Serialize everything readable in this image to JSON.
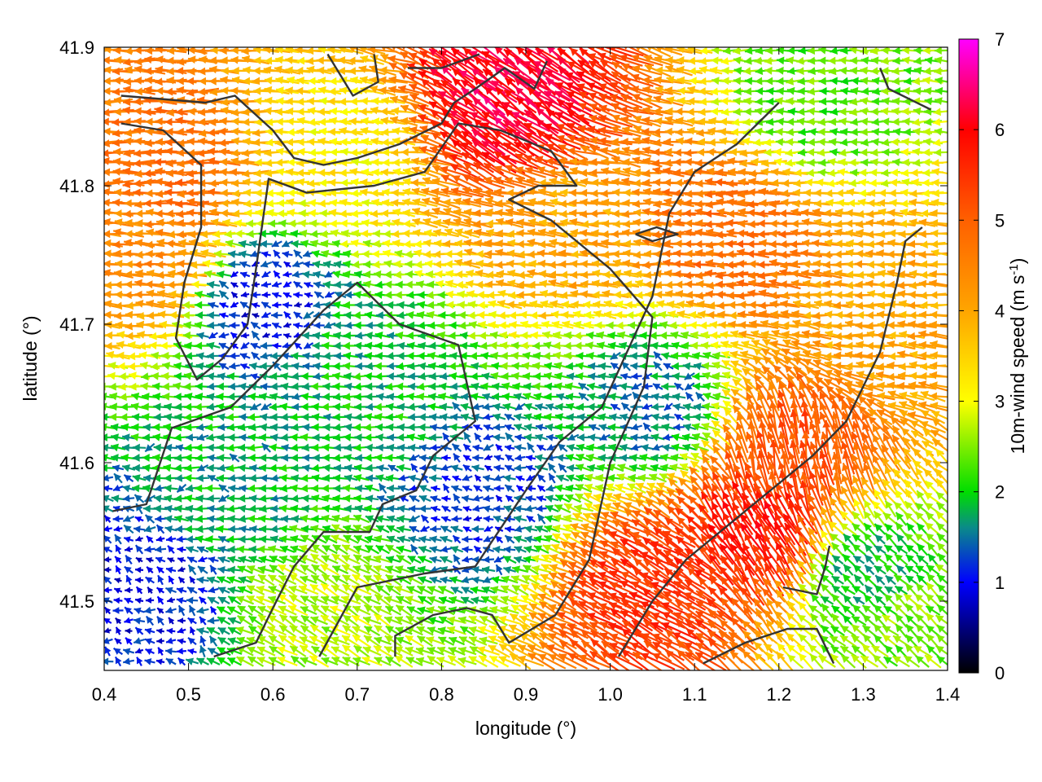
{
  "chart_data": {
    "type": "vector-field",
    "xlabel": "longitude (°)",
    "ylabel": "latitude (°)",
    "colorbar_label_main": "10m-wind speed (m s",
    "colorbar_label_sup": "-1",
    "colorbar_label_end": ")",
    "xlim": [
      0.4,
      1.4
    ],
    "ylim": [
      41.45,
      41.9
    ],
    "xticks": [
      0.4,
      0.5,
      0.6,
      0.7,
      0.8,
      0.9,
      1.0,
      1.1,
      1.2,
      1.3,
      1.4
    ],
    "xtick_labels": [
      "0.4",
      "0.5",
      "0.6",
      "0.7",
      "0.8",
      "0.9",
      "1.0",
      "1.1",
      "1.2",
      "1.3",
      "1.4"
    ],
    "yticks": [
      41.5,
      41.6,
      41.7,
      41.8,
      41.9
    ],
    "ytick_labels": [
      "41.5",
      "41.6",
      "41.7",
      "41.8",
      "41.9"
    ],
    "colorbar_range": [
      0,
      7
    ],
    "colorbar_ticks": [
      0,
      1,
      2,
      3,
      4,
      5,
      6,
      7
    ],
    "colorbar_tick_labels": [
      "0",
      "1",
      "2",
      "3",
      "4",
      "5",
      "6",
      "7"
    ],
    "colormap": [
      {
        "value": 0,
        "color": "#000000"
      },
      {
        "value": 1,
        "color": "#0000ff"
      },
      {
        "value": 1.6,
        "color": "#0a8a8a"
      },
      {
        "value": 2,
        "color": "#00dd00"
      },
      {
        "value": 3,
        "color": "#ffff00"
      },
      {
        "value": 4,
        "color": "#ffa500"
      },
      {
        "value": 5,
        "color": "#ff6000"
      },
      {
        "value": 6,
        "color": "#ff0000"
      },
      {
        "value": 7,
        "color": "#ff00ff"
      }
    ],
    "wind_regions": [
      {
        "lon": 0.47,
        "lat": 41.75,
        "speed": 4.4,
        "u": -1,
        "v": 0.03
      },
      {
        "lon": 0.49,
        "lat": 41.81,
        "speed": 4.8,
        "u": -1,
        "v": 0.0
      },
      {
        "lon": 0.68,
        "lat": 41.82,
        "speed": 3.2,
        "u": -1,
        "v": 0.05
      },
      {
        "lon": 0.95,
        "lat": 41.77,
        "speed": 4.0,
        "u": -1,
        "v": 0.07
      },
      {
        "lon": 1.15,
        "lat": 41.77,
        "speed": 4.8,
        "u": -1,
        "v": 0.02
      },
      {
        "lon": 1.33,
        "lat": 41.7,
        "speed": 4.0,
        "u": -1,
        "v": 0.05
      },
      {
        "lon": 0.88,
        "lat": 41.86,
        "speed": 6.2,
        "u": -0.8,
        "v": 0.6
      },
      {
        "lon": 0.73,
        "lat": 41.66,
        "speed": 1.9,
        "u": -1,
        "v": 0.02
      },
      {
        "lon": 0.58,
        "lat": 41.72,
        "speed": 1.0,
        "u": -0.8,
        "v": 0.1
      },
      {
        "lon": 0.85,
        "lat": 41.58,
        "speed": 1.2,
        "u": -0.7,
        "v": 0.2
      },
      {
        "lon": 1.05,
        "lat": 41.64,
        "speed": 1.5,
        "u": -1,
        "v": 0.1
      },
      {
        "lon": 0.55,
        "lat": 41.58,
        "speed": 1.8,
        "u": -1,
        "v": 0.0
      },
      {
        "lon": 0.45,
        "lat": 41.51,
        "speed": 1.0,
        "u": -0.6,
        "v": 0.3
      },
      {
        "lon": 0.65,
        "lat": 41.49,
        "speed": 2.7,
        "u": -0.7,
        "v": 0.4
      },
      {
        "lon": 1.05,
        "lat": 41.51,
        "speed": 5.5,
        "u": -0.85,
        "v": 0.5
      },
      {
        "lon": 1.18,
        "lat": 41.55,
        "speed": 5.8,
        "u": -0.5,
        "v": 0.85
      },
      {
        "lon": 1.22,
        "lat": 41.6,
        "speed": 5.2,
        "u": -0.2,
        "v": 1
      },
      {
        "lon": 1.3,
        "lat": 41.52,
        "speed": 1.8,
        "u": -0.6,
        "v": 0.5
      },
      {
        "lon": 1.25,
        "lat": 41.86,
        "speed": 2.3,
        "u": -1,
        "v": 0.0
      },
      {
        "lon": 1.35,
        "lat": 41.48,
        "speed": 2.5,
        "u": -0.7,
        "v": 0.6
      }
    ],
    "contours": [
      [
        [
          0.42,
          41.865
        ],
        [
          0.52,
          41.86
        ],
        [
          0.555,
          41.865
        ],
        [
          0.6,
          41.84
        ],
        [
          0.625,
          41.82
        ],
        [
          0.66,
          41.815
        ],
        [
          0.7,
          41.82
        ],
        [
          0.75,
          41.83
        ],
        [
          0.8,
          41.845
        ],
        [
          0.815,
          41.86
        ],
        [
          0.84,
          41.87
        ],
        [
          0.875,
          41.885
        ],
        [
          0.91,
          41.87
        ],
        [
          0.925,
          41.89
        ]
      ],
      [
        [
          0.42,
          41.845
        ],
        [
          0.47,
          41.84
        ],
        [
          0.515,
          41.815
        ],
        [
          0.515,
          41.77
        ],
        [
          0.495,
          41.73
        ],
        [
          0.485,
          41.69
        ],
        [
          0.51,
          41.66
        ],
        [
          0.54,
          41.675
        ],
        [
          0.57,
          41.7
        ],
        [
          0.58,
          41.74
        ],
        [
          0.595,
          41.805
        ],
        [
          0.64,
          41.795
        ],
        [
          0.72,
          41.8
        ],
        [
          0.78,
          41.81
        ],
        [
          0.82,
          41.845
        ],
        [
          0.87,
          41.84
        ],
        [
          0.93,
          41.825
        ],
        [
          0.96,
          41.8
        ],
        [
          0.915,
          41.8
        ],
        [
          0.88,
          41.79
        ],
        [
          0.93,
          41.775
        ],
        [
          0.97,
          41.755
        ],
        [
          1.0,
          41.74
        ],
        [
          1.05,
          41.705
        ],
        [
          1.04,
          41.655
        ],
        [
          1.0,
          41.6
        ],
        [
          0.975,
          41.53
        ],
        [
          0.935,
          41.49
        ],
        [
          0.88,
          41.47
        ],
        [
          0.86,
          41.49
        ],
        [
          0.83,
          41.495
        ],
        [
          0.79,
          41.49
        ],
        [
          0.745,
          41.475
        ],
        [
          0.745,
          41.46
        ]
      ],
      [
        [
          0.41,
          41.565
        ],
        [
          0.45,
          41.57
        ],
        [
          0.48,
          41.625
        ],
        [
          0.55,
          41.64
        ],
        [
          0.6,
          41.67
        ],
        [
          0.66,
          41.71
        ],
        [
          0.7,
          41.73
        ],
        [
          0.75,
          41.7
        ],
        [
          0.82,
          41.685
        ],
        [
          0.84,
          41.63
        ],
        [
          0.79,
          41.605
        ],
        [
          0.77,
          41.58
        ],
        [
          0.73,
          41.57
        ],
        [
          0.715,
          41.55
        ],
        [
          0.66,
          41.55
        ],
        [
          0.625,
          41.525
        ],
        [
          0.6,
          41.495
        ],
        [
          0.58,
          41.47
        ],
        [
          0.53,
          41.46
        ]
      ],
      [
        [
          0.655,
          41.46
        ],
        [
          0.7,
          41.51
        ],
        [
          0.78,
          41.52
        ],
        [
          0.84,
          41.525
        ],
        [
          0.9,
          41.58
        ],
        [
          0.94,
          41.615
        ],
        [
          0.99,
          41.64
        ],
        [
          1.02,
          41.68
        ],
        [
          1.05,
          41.72
        ],
        [
          1.07,
          41.78
        ],
        [
          1.1,
          41.81
        ],
        [
          1.15,
          41.83
        ],
        [
          1.2,
          41.86
        ]
      ],
      [
        [
          1.01,
          41.46
        ],
        [
          1.05,
          41.5
        ],
        [
          1.09,
          41.53
        ],
        [
          1.13,
          41.55
        ],
        [
          1.17,
          41.57
        ],
        [
          1.2,
          41.585
        ],
        [
          1.24,
          41.605
        ],
        [
          1.28,
          41.63
        ],
        [
          1.32,
          41.68
        ],
        [
          1.34,
          41.73
        ],
        [
          1.35,
          41.76
        ],
        [
          1.37,
          41.77
        ]
      ],
      [
        [
          1.11,
          41.455
        ],
        [
          1.16,
          41.47
        ],
        [
          1.21,
          41.48
        ],
        [
          1.245,
          41.48
        ],
        [
          1.265,
          41.455
        ]
      ],
      [
        [
          1.205,
          41.51
        ],
        [
          1.245,
          41.505
        ],
        [
          1.255,
          41.525
        ],
        [
          1.26,
          41.54
        ]
      ],
      [
        [
          1.03,
          41.765
        ],
        [
          1.055,
          41.77
        ],
        [
          1.08,
          41.765
        ],
        [
          1.05,
          41.76
        ],
        [
          1.03,
          41.765
        ]
      ],
      [
        [
          0.665,
          41.895
        ],
        [
          0.695,
          41.865
        ],
        [
          0.725,
          41.875
        ],
        [
          0.72,
          41.895
        ]
      ],
      [
        [
          0.76,
          41.885
        ],
        [
          0.8,
          41.885
        ],
        [
          0.845,
          41.895
        ]
      ],
      [
        [
          1.32,
          41.885
        ],
        [
          1.33,
          41.87
        ],
        [
          1.38,
          41.855
        ]
      ]
    ]
  }
}
